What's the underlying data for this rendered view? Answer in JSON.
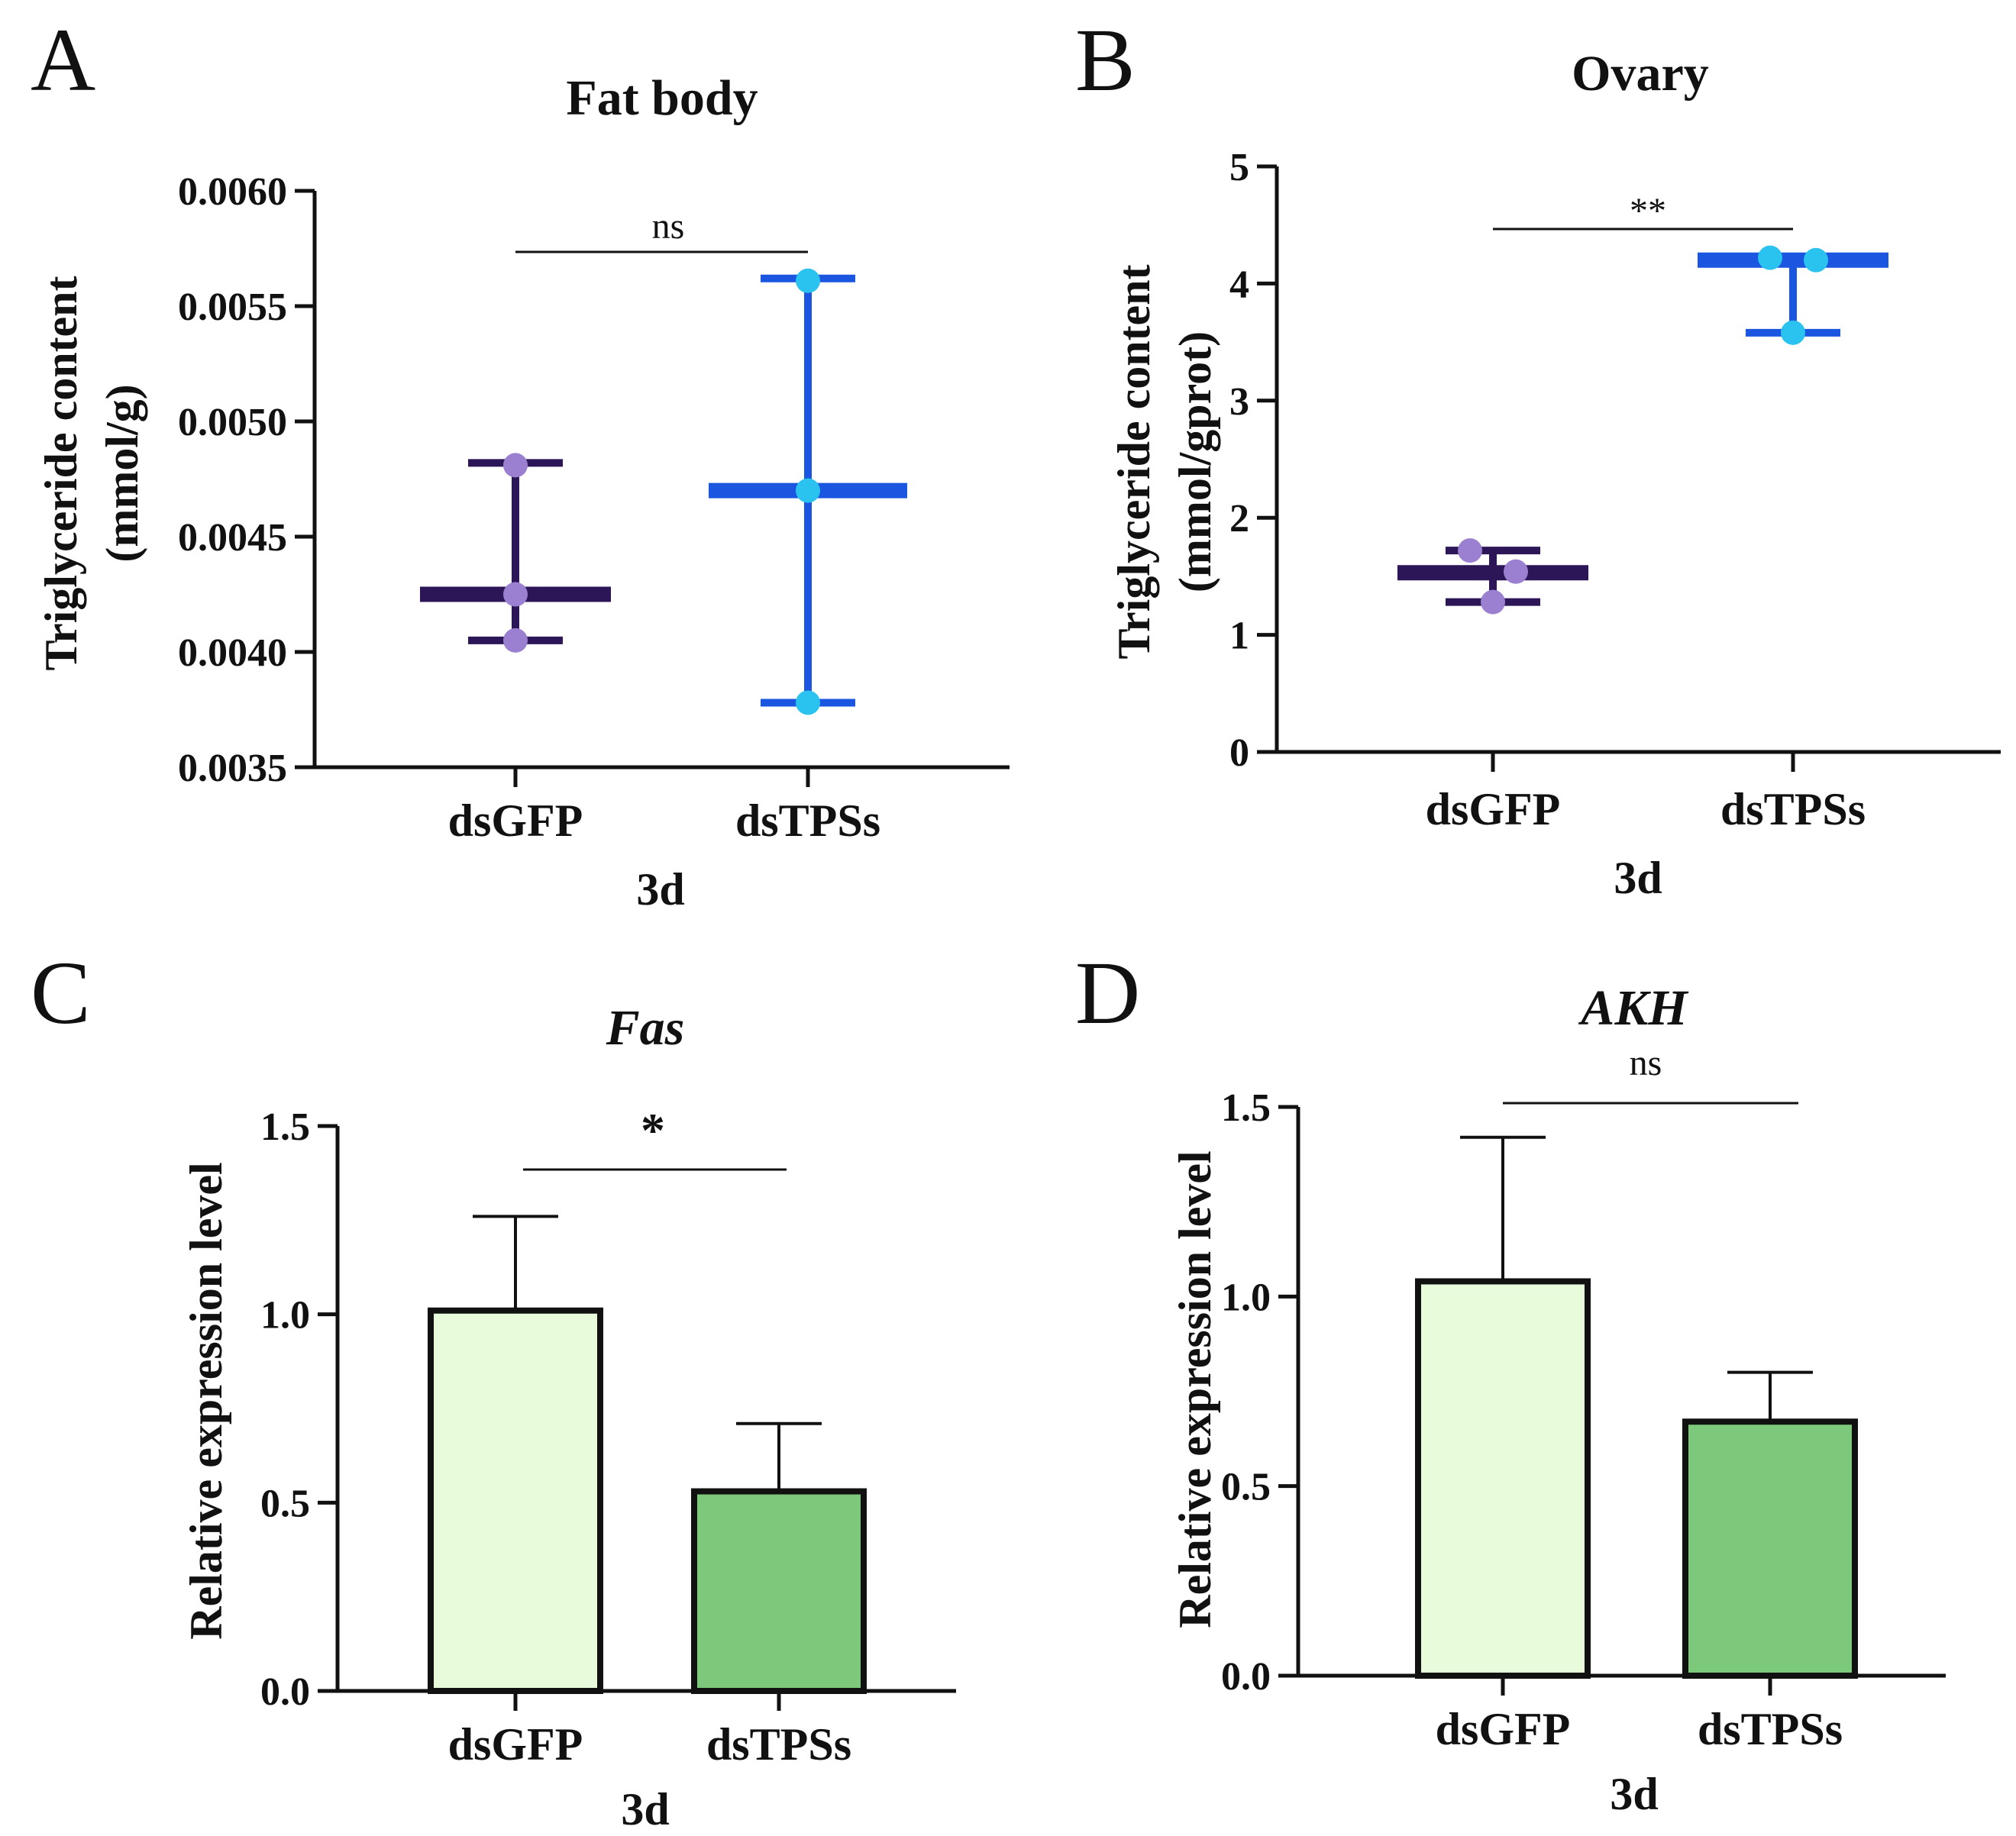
{
  "chart_data": [
    {
      "panel": "A",
      "type": "scatter",
      "title": "Fat body",
      "title_italic": false,
      "ylabel_line1": "Triglyceride content",
      "ylabel_line2": "(mmol/g)",
      "xlabel": "3d",
      "ylim": [
        0.0035,
        0.006
      ],
      "yticks": [
        "0.0035",
        "0.0040",
        "0.0045",
        "0.0050",
        "0.0055",
        "0.0060"
      ],
      "categories": [
        "dsGFP",
        "dsTPSs"
      ],
      "series": [
        {
          "name": "dsGFP",
          "mean": 0.00425,
          "min": 0.00405,
          "max": 0.00482,
          "points": [
            0.00481,
            0.00425,
            0.00405
          ],
          "color": "#2d1657",
          "point_color": "#9b7fd0"
        },
        {
          "name": "dsTPSs",
          "mean": 0.0047,
          "min": 0.00378,
          "max": 0.00562,
          "points": [
            0.00561,
            0.0047,
            0.00378
          ],
          "color": "#1a56e0",
          "point_color": "#2ac3f0"
        }
      ],
      "significance": "ns"
    },
    {
      "panel": "B",
      "type": "scatter",
      "title": "Ovary",
      "title_italic": false,
      "ylabel_line1": "Triglyceride content",
      "ylabel_line2": "(mmol/gprot)",
      "xlabel": "3d",
      "ylim": [
        0,
        5
      ],
      "yticks": [
        "0",
        "1",
        "2",
        "3",
        "4",
        "5"
      ],
      "categories": [
        "dsGFP",
        "dsTPSs"
      ],
      "series": [
        {
          "name": "dsGFP",
          "mean": 1.53,
          "min": 1.28,
          "max": 1.72,
          "points": [
            1.72,
            1.54,
            1.28
          ],
          "color": "#2d1657",
          "point_color": "#9b7fd0"
        },
        {
          "name": "dsTPSs",
          "mean": 4.2,
          "min": 3.58,
          "max": 4.23,
          "points": [
            4.22,
            4.2,
            3.58
          ],
          "color": "#1a56e0",
          "point_color": "#2ac3f0"
        }
      ],
      "significance": "**"
    },
    {
      "panel": "C",
      "type": "bar",
      "title": "Fas",
      "title_italic": true,
      "ylabel": "Relative expression level",
      "xlabel": "3d",
      "ylim": [
        0,
        1.5
      ],
      "yticks": [
        "0.0",
        "0.5",
        "1.0",
        "1.5"
      ],
      "categories": [
        "dsGFP",
        "dsTPSs"
      ],
      "values": [
        1.01,
        0.53
      ],
      "errors": [
        0.25,
        0.18
      ],
      "bar_colors": [
        "#e8fcdc",
        "#7dc97b"
      ],
      "significance": "*"
    },
    {
      "panel": "D",
      "type": "bar",
      "title": "AKH",
      "title_italic": true,
      "ylabel": "Relative expression level",
      "xlabel": "3d",
      "ylim": [
        0,
        1.5
      ],
      "yticks": [
        "0.0",
        "0.5",
        "1.0",
        "1.5"
      ],
      "categories": [
        "dsGFP",
        "dsTPSs"
      ],
      "values": [
        1.04,
        0.67
      ],
      "errors": [
        0.38,
        0.13
      ],
      "bar_colors": [
        "#e8fcdc",
        "#7dc97b"
      ],
      "significance": "ns"
    }
  ]
}
